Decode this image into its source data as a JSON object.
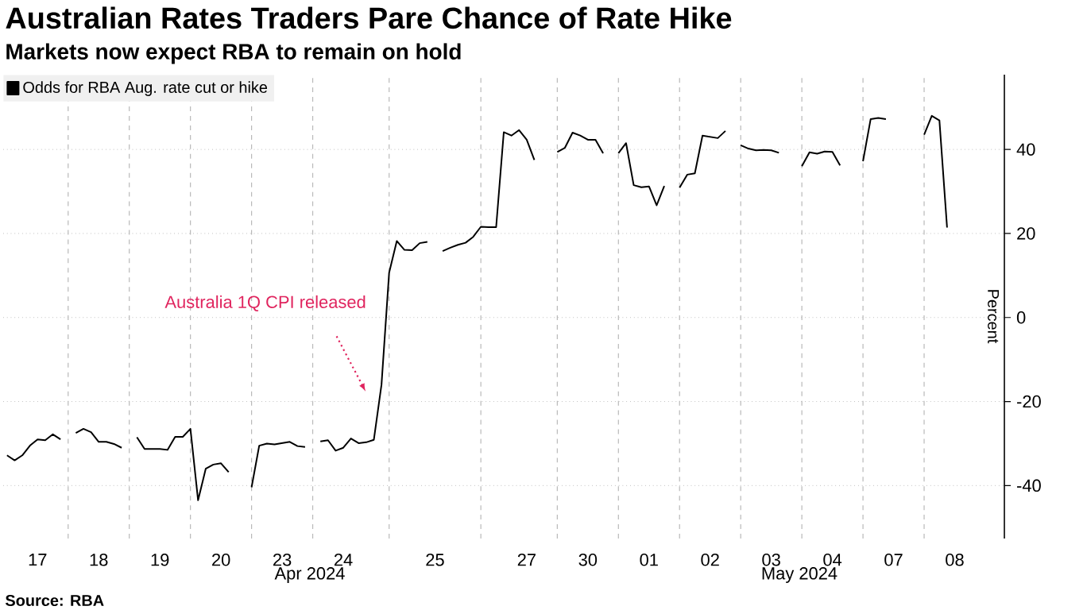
{
  "chart_data": {
    "type": "line",
    "title": "Australian Rates Traders Pare Chance of Rate Hike",
    "subtitle": "Markets now expect RBA to remain on hold",
    "ylabel": "Percent",
    "annotations": [
      "Australia 1Q CPI released",
      "Apr 2024",
      "May 2024",
      "Source: RBA"
    ],
    "ylim": [
      -52.6,
      57.8
    ],
    "yticks": [
      -40,
      -20,
      0,
      20,
      40
    ],
    "categories": [
      null,
      null,
      null,
      null,
      "17",
      null,
      null,
      null,
      null,
      null,
      null,
      null,
      "18",
      null,
      null,
      null,
      null,
      null,
      null,
      null,
      "19",
      null,
      null,
      null,
      null,
      null,
      null,
      null,
      "20",
      null,
      null,
      null,
      null,
      null,
      null,
      null,
      "23",
      null,
      null,
      null,
      null,
      null,
      null,
      null,
      "24",
      null,
      null,
      null,
      null,
      null,
      null,
      null,
      null,
      null,
      null,
      null,
      "25",
      null,
      null,
      null,
      null,
      null,
      null,
      null,
      null,
      null,
      null,
      null,
      "27",
      null,
      null,
      null,
      null,
      null,
      null,
      null,
      "30",
      null,
      null,
      null,
      null,
      null,
      null,
      null,
      "01",
      null,
      null,
      null,
      null,
      null,
      null,
      null,
      "02",
      null,
      null,
      null,
      null,
      null,
      null,
      null,
      "03",
      null,
      null,
      null,
      null,
      null,
      null,
      null,
      "04",
      null,
      null,
      null,
      null,
      null,
      null,
      null,
      "07",
      null,
      null,
      null,
      null,
      null,
      null,
      null,
      "08",
      null,
      null,
      null,
      null,
      null,
      null
    ],
    "grid": true,
    "legend": "top left",
    "series": [
      {
        "name": "Odds for RBA Aug. rate cut or hike",
        "color": "#000000",
        "values": [
          -32.8,
          -34,
          -32.8,
          -30.5,
          -29,
          -29.2,
          -27.8,
          -29.0,
          null,
          -27.5,
          -26.5,
          -27.3,
          -29.6,
          -29.6,
          -30.1,
          -31.0,
          null,
          -28.5,
          -31.3,
          -31.3,
          -31.3,
          -31.5,
          -28.4,
          -28.4,
          -26.5,
          -43.5,
          -36,
          -35,
          -34.7,
          -36.8,
          null,
          null,
          -40.4,
          -30.5,
          -30.0,
          -30.2,
          -29.9,
          -29.6,
          -30.6,
          -30.8,
          null,
          -29.5,
          -29.2,
          -31.7,
          -31,
          -28.8,
          -29.9,
          -29.7,
          -29.1,
          -16,
          10.7,
          18.2,
          16.1,
          16,
          17.7,
          18.0,
          null,
          15.8,
          16.6,
          17.3,
          17.8,
          19.2,
          21.6,
          21.5,
          21.5,
          44.1,
          43.3,
          44.6,
          42.3,
          37.5,
          null,
          null,
          39.4,
          40.4,
          44.0,
          43.3,
          42.3,
          42.3,
          39.1,
          null,
          39.1,
          41.5,
          31.5,
          31.0,
          31.2,
          26.7,
          31.3,
          null,
          30.9,
          34,
          34.3,
          43.3,
          43.0,
          42.7,
          44.4,
          null,
          41.0,
          40.2,
          39.8,
          39.9,
          39.8,
          39.2,
          null,
          null,
          36.0,
          39.3,
          39.0,
          39.5,
          39.4,
          36.2,
          null,
          null,
          37.2,
          47.2,
          47.5,
          47.2,
          null,
          null,
          null,
          null,
          43.5,
          48.0,
          46.9,
          21.4,
          null,
          null,
          null,
          null,
          null,
          null,
          null
        ]
      }
    ]
  }
}
